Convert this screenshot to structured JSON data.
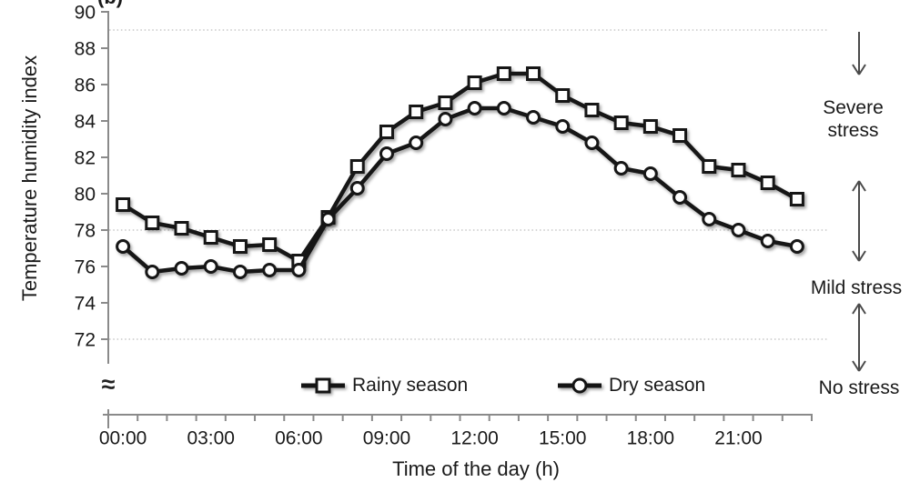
{
  "figure": {
    "panel_label": "(b)",
    "axis_break_symbol": "≈"
  },
  "chart_data": {
    "type": "line",
    "title": "",
    "xlabel": "Time of the day (h)",
    "ylabel": "Temperature humidity index",
    "x_categories": [
      "00:00",
      "01:00",
      "02:00",
      "03:00",
      "04:00",
      "05:00",
      "06:00",
      "07:00",
      "08:00",
      "09:00",
      "10:00",
      "11:00",
      "12:00",
      "13:00",
      "14:00",
      "15:00",
      "16:00",
      "17:00",
      "18:00",
      "19:00",
      "20:00",
      "21:00",
      "22:00",
      "23:00"
    ],
    "x_tick_labels": [
      "00:00",
      "03:00",
      "06:00",
      "09:00",
      "12:00",
      "15:00",
      "18:00",
      "21:00"
    ],
    "x_tick_hours": [
      0,
      3,
      6,
      9,
      12,
      15,
      18,
      21
    ],
    "y_ticks": [
      90,
      88,
      86,
      84,
      82,
      80,
      78,
      76,
      74,
      72
    ],
    "ylim": [
      72,
      90
    ],
    "grid_on": true,
    "grid_values": [
      89,
      78,
      72
    ],
    "axis_break": true,
    "legend_position": "bottom-inside",
    "series": [
      {
        "name": "Rainy season",
        "marker": "square",
        "color": "#141414",
        "values": [
          79.4,
          78.4,
          78.1,
          77.6,
          77.1,
          77.2,
          76.3,
          78.7,
          81.5,
          83.4,
          84.5,
          85.0,
          86.1,
          86.6,
          86.6,
          85.4,
          84.6,
          83.9,
          83.7,
          83.2,
          81.5,
          81.3,
          80.6,
          79.7
        ]
      },
      {
        "name": "Dry season",
        "marker": "circle",
        "color": "#141414",
        "values": [
          77.1,
          75.7,
          75.9,
          76.0,
          75.7,
          75.8,
          75.8,
          78.6,
          80.3,
          82.2,
          82.8,
          84.1,
          84.7,
          84.7,
          84.2,
          83.7,
          82.8,
          81.4,
          81.1,
          79.8,
          78.6,
          78.0,
          77.4,
          77.1
        ]
      }
    ],
    "annotations": [
      {
        "label": "Severe stress",
        "arrow": "down"
      },
      {
        "label": "Mild stress",
        "arrow": "double"
      },
      {
        "label": "No stress",
        "arrow": "double"
      }
    ]
  }
}
